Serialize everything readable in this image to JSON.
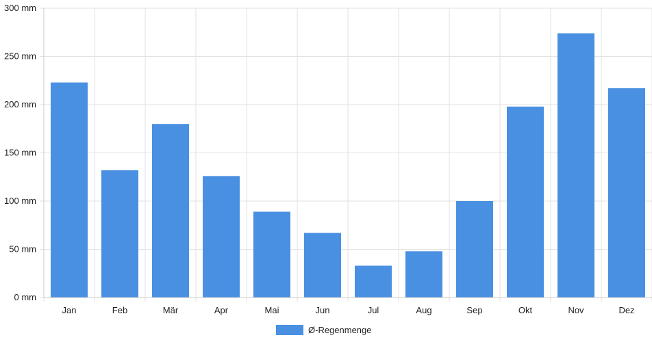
{
  "chart_data": {
    "type": "bar",
    "categories": [
      "Jan",
      "Feb",
      "Mär",
      "Apr",
      "Mai",
      "Jun",
      "Jul",
      "Aug",
      "Sep",
      "Okt",
      "Nov",
      "Dez"
    ],
    "series": [
      {
        "name": "Ø-Regenmenge",
        "values": [
          223,
          132,
          180,
          126,
          89,
          67,
          33,
          48,
          100,
          198,
          274,
          217
        ],
        "color": "#4a90e2"
      }
    ],
    "y_ticks": [
      "0 mm",
      "50 mm",
      "100 mm",
      "150 mm",
      "200 mm",
      "250 mm",
      "300 mm"
    ],
    "ylim": [
      0,
      300
    ],
    "y_unit": "mm",
    "grid": true,
    "legend_position": "bottom-center"
  }
}
